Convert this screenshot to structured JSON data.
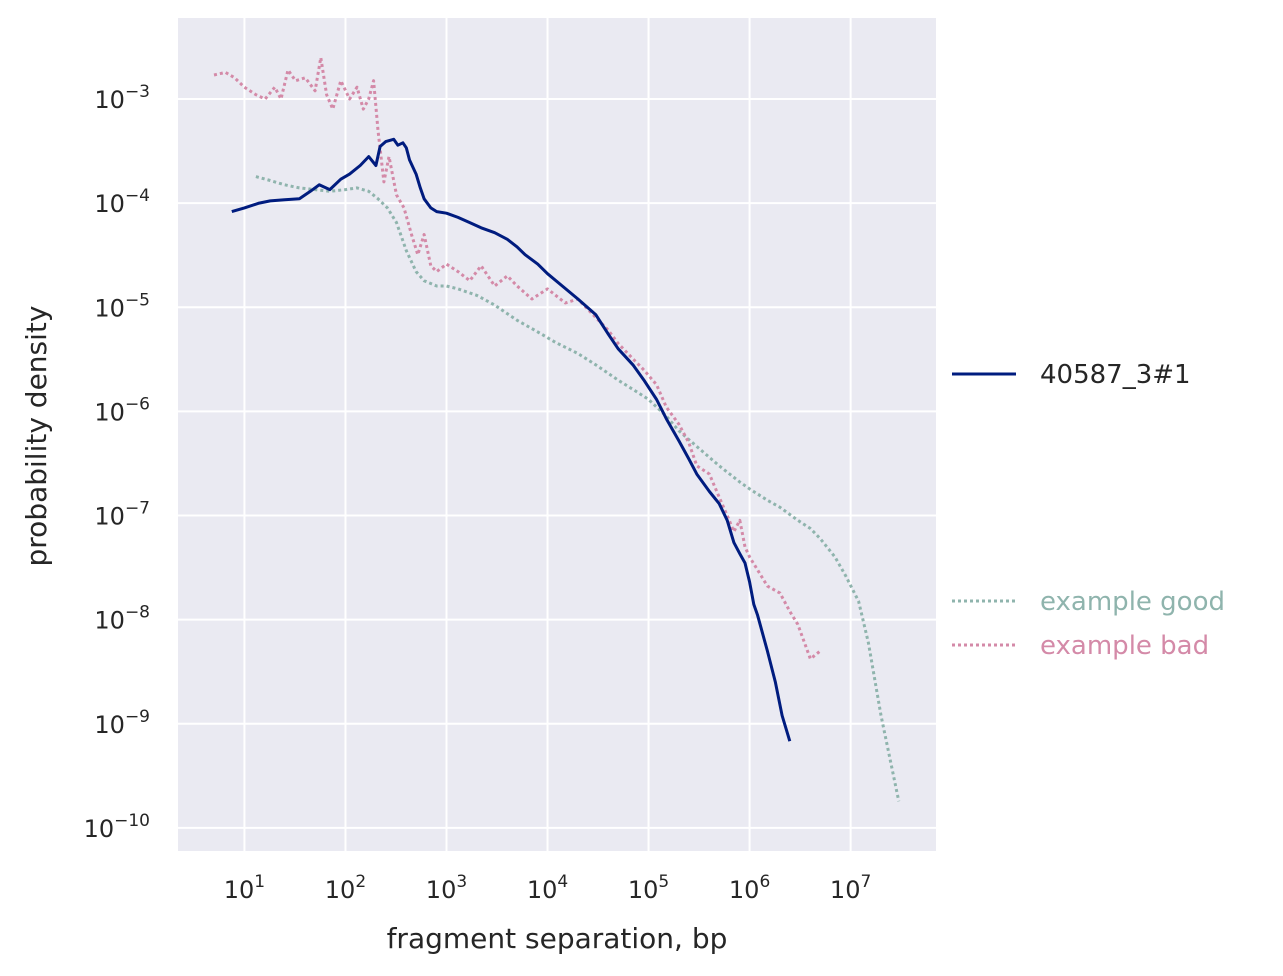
{
  "chart_data": {
    "type": "line",
    "title": "",
    "xlabel": "fragment separation, bp",
    "ylabel": "probability density",
    "xscale": "log",
    "yscale": "log",
    "xlim": [
      2.2,
      70000000
    ],
    "ylim": [
      6e-11,
      0.006
    ],
    "x_ticks": [
      {
        "value": 10,
        "mant": "10",
        "exp": "1"
      },
      {
        "value": 100,
        "mant": "10",
        "exp": "2"
      },
      {
        "value": 1000,
        "mant": "10",
        "exp": "3"
      },
      {
        "value": 10000,
        "mant": "10",
        "exp": "4"
      },
      {
        "value": 100000,
        "mant": "10",
        "exp": "5"
      },
      {
        "value": 1000000,
        "mant": "10",
        "exp": "6"
      },
      {
        "value": 10000000,
        "mant": "10",
        "exp": "7"
      }
    ],
    "y_ticks": [
      {
        "value": 0.001,
        "mant": "10",
        "exp": "−3"
      },
      {
        "value": 0.0001,
        "mant": "10",
        "exp": "−4"
      },
      {
        "value": 1e-05,
        "mant": "10",
        "exp": "−5"
      },
      {
        "value": 1e-06,
        "mant": "10",
        "exp": "−6"
      },
      {
        "value": 1e-07,
        "mant": "10",
        "exp": "−7"
      },
      {
        "value": 1e-08,
        "mant": "10",
        "exp": "−8"
      },
      {
        "value": 1e-09,
        "mant": "10",
        "exp": "−9"
      },
      {
        "value": 1e-10,
        "mant": "10",
        "exp": "−10"
      }
    ],
    "grid": true,
    "legend_placement": "outside-right",
    "colors": {
      "plot_background": "#eaeaf2",
      "grid": "#ffffff",
      "sample": "#001c7f",
      "good": "#8fb4ad",
      "bad": "#d48aa8",
      "text": "#262626"
    },
    "series": [
      {
        "name": "40587_3#1",
        "style": "solid",
        "x": [
          7.5,
          10,
          14,
          18,
          25,
          35,
          45,
          55,
          70,
          90,
          110,
          140,
          170,
          200,
          220,
          250,
          300,
          330,
          370,
          400,
          430,
          500,
          550,
          600,
          700,
          800,
          1000,
          1300,
          1700,
          2200,
          3000,
          4000,
          5000,
          6000,
          8000,
          10000,
          14000,
          20000,
          30000,
          40000,
          50000,
          70000,
          90000,
          120000,
          150000,
          200000,
          250000,
          300000,
          400000,
          500000,
          600000,
          700000,
          800000,
          900000,
          1000000,
          1100000,
          1200000,
          1500000,
          1800000,
          2100000,
          2500000
        ],
        "y": [
          8.3e-05,
          9e-05,
          0.0001,
          0.000105,
          0.000108,
          0.00011,
          0.00013,
          0.00015,
          0.000135,
          0.00017,
          0.00019,
          0.00023,
          0.00028,
          0.00023,
          0.00035,
          0.00039,
          0.00041,
          0.00036,
          0.00038,
          0.00034,
          0.00026,
          0.00019,
          0.00014,
          0.00011,
          9e-05,
          8.3e-05,
          8e-05,
          7.3e-05,
          6.5e-05,
          5.8e-05,
          5.2e-05,
          4.5e-05,
          3.8e-05,
          3.2e-05,
          2.6e-05,
          2.1e-05,
          1.6e-05,
          1.2e-05,
          8.5e-06,
          5.5e-06,
          4e-06,
          2.8e-06,
          2e-06,
          1.3e-06,
          8.5e-07,
          5.2e-07,
          3.5e-07,
          2.5e-07,
          1.7e-07,
          1.3e-07,
          9e-08,
          5.5e-08,
          4.3e-08,
          3.5e-08,
          2.3e-08,
          1.4e-08,
          1.1e-08,
          5e-09,
          2.5e-09,
          1.2e-09,
          6.8e-10
        ]
      },
      {
        "name": "example good",
        "style": "dotted",
        "x": [
          13,
          18,
          25,
          35,
          50,
          70,
          100,
          130,
          170,
          210,
          260,
          320,
          400,
          500,
          600,
          800,
          1000,
          1300,
          2000,
          3000,
          5000,
          8000,
          12000,
          20000,
          30000,
          50000,
          80000,
          100000,
          150000,
          200000,
          300000,
          500000,
          800000,
          1000000,
          1500000,
          2000000,
          3000000,
          4000000,
          5000000,
          7000000,
          9000000,
          12000000,
          15000000,
          20000000,
          30000000
        ],
        "y": [
          0.00018,
          0.000165,
          0.00015,
          0.00014,
          0.000135,
          0.00013,
          0.000135,
          0.00014,
          0.00013,
          0.00011,
          9e-05,
          6.5e-05,
          3.5e-05,
          2.2e-05,
          1.8e-05,
          1.6e-05,
          1.6e-05,
          1.5e-05,
          1.3e-05,
          1.05e-05,
          7.5e-06,
          5.8e-06,
          4.6e-06,
          3.6e-06,
          2.8e-06,
          2e-06,
          1.5e-06,
          1.3e-06,
          9e-07,
          6.5e-07,
          4.6e-07,
          3e-07,
          2.1e-07,
          1.8e-07,
          1.4e-07,
          1.2e-07,
          9e-08,
          7.5e-08,
          6e-08,
          4e-08,
          2.6e-08,
          1.5e-08,
          6e-09,
          1.2e-09,
          1.8e-10
        ]
      },
      {
        "name": "example bad",
        "style": "dotted",
        "x": [
          5,
          6.5,
          8,
          10,
          13,
          16,
          20,
          23,
          27,
          32,
          40,
          50,
          57,
          65,
          75,
          90,
          110,
          130,
          150,
          170,
          190,
          210,
          240,
          270,
          320,
          380,
          450,
          520,
          600,
          700,
          800,
          1000,
          1300,
          1700,
          2200,
          3000,
          4000,
          5000,
          7000,
          10000,
          15000,
          20000,
          30000,
          40000,
          50000,
          70000,
          90000,
          120000,
          150000,
          200000,
          250000,
          300000,
          400000,
          500000,
          600000,
          700000,
          800000,
          900000,
          1000000,
          1200000,
          1500000,
          2000000,
          2500000,
          3000000,
          4000000,
          5000000
        ],
        "y": [
          0.0017,
          0.0018,
          0.0016,
          0.0013,
          0.0011,
          0.001,
          0.0013,
          0.001,
          0.0019,
          0.0015,
          0.0016,
          0.0012,
          0.0025,
          0.0011,
          0.0008,
          0.0015,
          0.001,
          0.0013,
          0.0008,
          0.001,
          0.0015,
          0.0005,
          0.00016,
          0.00028,
          0.00012,
          9e-05,
          5e-05,
          3.2e-05,
          5e-05,
          2.5e-05,
          2.2e-05,
          2.6e-05,
          2.2e-05,
          1.8e-05,
          2.5e-05,
          1.6e-05,
          2e-05,
          1.6e-05,
          1.2e-05,
          1.5e-05,
          1.1e-05,
          1.2e-05,
          8e-06,
          6e-06,
          4.5e-06,
          3.2e-06,
          2.5e-06,
          1.8e-06,
          1.1e-06,
          7.5e-07,
          5e-07,
          3e-07,
          2.5e-07,
          1.5e-07,
          1e-07,
          7e-08,
          9e-08,
          5e-08,
          4e-08,
          3e-08,
          2.1e-08,
          1.8e-08,
          1.2e-08,
          9e-09,
          4.2e-09,
          5e-09
        ]
      }
    ]
  }
}
